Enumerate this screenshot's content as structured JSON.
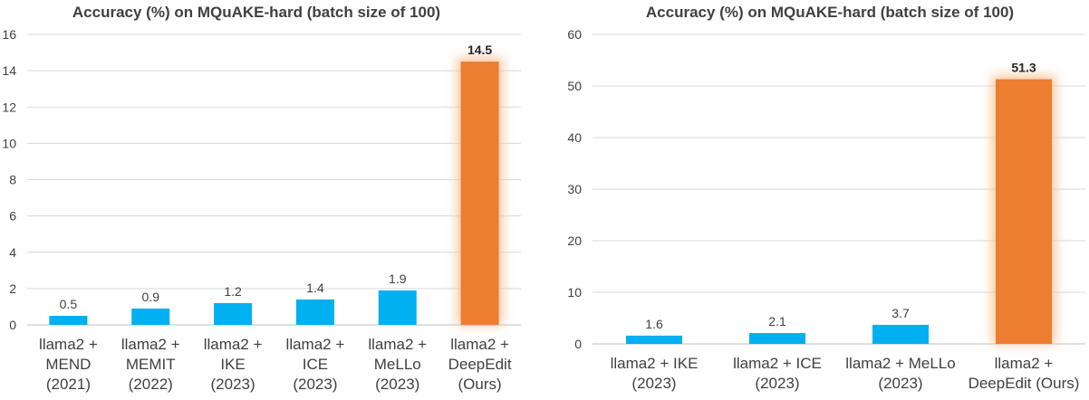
{
  "colors": {
    "bar": "#00b0f0",
    "highlight": "#ed7d31",
    "glow": "#f8c49a",
    "grid": "#d9d9d9",
    "text": "#404040"
  },
  "chart_data": [
    {
      "type": "bar",
      "title": "Accuracy (%) on MQuAKE-hard (batch size of 100)",
      "categories": [
        [
          "llama2 +",
          "MEND",
          "(2021)"
        ],
        [
          "llama2 +",
          "MEMIT",
          "(2022)"
        ],
        [
          "llama2 +",
          "IKE",
          "(2023)"
        ],
        [
          "llama2 +",
          "ICE",
          "(2023)"
        ],
        [
          "llama2 +",
          "MeLLo",
          "(2023)"
        ],
        [
          "llama2 +",
          "DeepEdit",
          "(Ours)"
        ]
      ],
      "values": [
        0.5,
        0.9,
        1.2,
        1.4,
        1.9,
        14.5
      ],
      "value_labels": [
        "0.5",
        "0.9",
        "1.2",
        "1.4",
        "1.9",
        "14.5"
      ],
      "highlight_index": 5,
      "ylim": [
        0,
        16
      ],
      "yticks": [
        0,
        2,
        4,
        6,
        8,
        10,
        12,
        14,
        16
      ],
      "grid": true
    },
    {
      "type": "bar",
      "title": "Accuracy (%) on MQuAKE-hard (batch size of 100)",
      "categories": [
        [
          "llama2 + IKE",
          "(2023)"
        ],
        [
          "llama2 + ICE",
          "(2023)"
        ],
        [
          "llama2 + MeLLo",
          "(2023)"
        ],
        [
          "llama2 +",
          "DeepEdit (Ours)"
        ]
      ],
      "values": [
        1.6,
        2.1,
        3.7,
        51.3
      ],
      "value_labels": [
        "1.6",
        "2.1",
        "3.7",
        "51.3"
      ],
      "highlight_index": 3,
      "ylim": [
        0,
        60
      ],
      "yticks": [
        0,
        10,
        20,
        30,
        40,
        50,
        60
      ],
      "grid": true
    }
  ]
}
